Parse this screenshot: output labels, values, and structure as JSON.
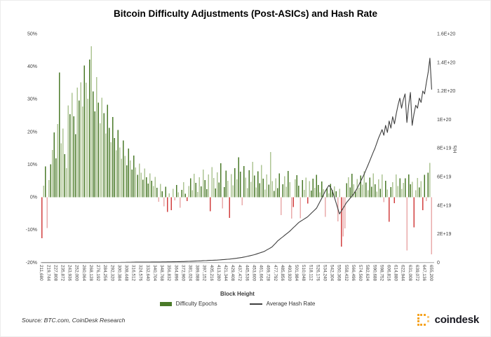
{
  "title": "Bitcoin Difficulty Adjustments (Post-ASICs) and Hash Rate",
  "source": "Source: BTC.com, CoinDesk Research",
  "logo": {
    "text": "coindesk",
    "mark_color": "#F6A21D",
    "mark_color_light": "#F9C878",
    "text_color": "#17171f"
  },
  "legend": {
    "difficulty": {
      "label": "Difficulty Epochs"
    },
    "hash": {
      "label": "Average Hash Rate"
    }
  },
  "chart_data": {
    "type": "bar+line",
    "title": "Bitcoin Difficulty Adjustments (Post-ASICs) and Hash Rate",
    "xlabel": "Block Height",
    "block_start": 211680,
    "block_step": 2016,
    "grid": "off",
    "legend_position": "bottom",
    "y_left": {
      "label": "",
      "unit": "%",
      "min": -20,
      "max": 50,
      "ticks": [
        "50%",
        "40%",
        "30%",
        "20%",
        "10%",
        "0%",
        "-10%",
        "-20%"
      ]
    },
    "y_right": {
      "label": "H/s",
      "min": 0,
      "max": 1.6e+20,
      "ticks": [
        "1.6E+20",
        "1.4E+20",
        "1.2E+20",
        "1E+20",
        "8E+19",
        "6E+19",
        "4E+19",
        "2E+19",
        "0"
      ]
    },
    "x_tick_labels": [
      "211,680",
      "219,744",
      "227,808",
      "235,872",
      "243,936",
      "252,000",
      "260,064",
      "268,128",
      "276,192",
      "284,256",
      "292,320",
      "300,384",
      "308,448",
      "316,512",
      "324,576",
      "332,640",
      "340,704",
      "348,768",
      "356,832",
      "364,896",
      "372,960",
      "381,024",
      "389,088",
      "397,152",
      "405,216",
      "413,280",
      "421,344",
      "429,408",
      "437,472",
      "445,536",
      "453,600",
      "461,664",
      "469,728",
      "477,792",
      "485,856",
      "493,920",
      "501,984",
      "510,048",
      "518,112",
      "526,176",
      "534,240",
      "542,304",
      "550,368",
      "558,432",
      "566,496",
      "574,560",
      "582,624",
      "590,688",
      "598,752",
      "606,816",
      "614,880",
      "622,944",
      "631,008",
      "639,072",
      "647,136",
      "655,200"
    ],
    "series": [
      {
        "name": "Difficulty Epochs",
        "type": "bar",
        "unit": "% adjustment",
        "values": [
          -12.6,
          3.5,
          9.4,
          -9.5,
          5.2,
          10.1,
          14.5,
          19.8,
          11.9,
          22.4,
          38.2,
          16.5,
          21.0,
          13.2,
          8.9,
          28.1,
          25.4,
          31.9,
          24.7,
          19.3,
          33.5,
          29.6,
          35.2,
          27.8,
          40.3,
          35.0,
          30.1,
          42.1,
          46.2,
          32.4,
          26.3,
          36.8,
          28.9,
          22.6,
          30.4,
          25.7,
          19.5,
          28.3,
          21.2,
          16.8,
          24.5,
          18.1,
          14.3,
          20.6,
          15.2,
          11.8,
          17.4,
          12.6,
          9.7,
          14.9,
          11.2,
          8.4,
          12.7,
          9.1,
          6.8,
          10.3,
          7.5,
          5.3,
          8.8,
          6.1,
          4.2,
          7.3,
          5.0,
          3.4,
          6.2,
          2.9,
          -1.4,
          4.1,
          1.8,
          -2.8,
          3.2,
          -4.5,
          1.2,
          -4.0,
          2.5,
          -1.0,
          3.7,
          1.5,
          -3.2,
          2.2,
          4.6,
          1.1,
          -1.2,
          3.4,
          5.8,
          2.1,
          7.2,
          4.4,
          1.6,
          6.1,
          3.3,
          8.5,
          5.2,
          2.4,
          7.0,
          -4.3,
          9.2,
          5.9,
          2.7,
          7.6,
          4.5,
          10.4,
          -3.5,
          3.1,
          8.1,
          5.0,
          -6.4,
          7.1,
          3.6,
          8.9,
          5.4,
          12.2,
          7.8,
          -2.5,
          9.5,
          6.0,
          2.8,
          8.2,
          4.7,
          10.8,
          6.6,
          3.0,
          7.9,
          4.3,
          9.8,
          5.7,
          2.3,
          6.9,
          3.8,
          13.8,
          4.9,
          1.9,
          5.8,
          2.8,
          7.3,
          -5.5,
          3.9,
          6.4,
          3.2,
          8.0,
          4.6,
          -6.6,
          -3.0,
          5.5,
          6.7,
          3.5,
          -6.5,
          5.2,
          2.2,
          6.0,
          -2.0,
          4.9,
          2.0,
          5.7,
          2.9,
          6.8,
          3.7,
          1.5,
          4.8,
          2.4,
          -6.0,
          2.8,
          1.2,
          4.1,
          2.2,
          3.3,
          1.8,
          -7.4,
          2.6,
          -15.1,
          -12.0,
          -9.6,
          4.3,
          6.1,
          3.0,
          7.2,
          4.0,
          1.7,
          5.6,
          2.9,
          6.6,
          3.8,
          7.9,
          4.5,
          2.1,
          6.0,
          3.2,
          7.3,
          4.0,
          1.7,
          5.4,
          2.6,
          6.9,
          -1.5,
          5.0,
          2.3,
          -7.5,
          3.1,
          4.6,
          -1.8,
          7.0,
          3.4,
          5.8,
          2.5,
          4.4,
          5.8,
          -16.3,
          6.9,
          3.9,
          4.7,
          -9.2,
          2.1,
          5.9,
          3.0,
          4.9,
          -4.0,
          6.8,
          -1.2,
          7.5,
          10.5,
          -17.5
        ]
      },
      {
        "name": "Average Hash Rate",
        "type": "line",
        "unit": "EH/s (1e18 H/s)",
        "values": [
          3e-05,
          4e-05,
          5e-05,
          6e-05,
          8e-05,
          0.0001,
          0.00012,
          0.00014,
          0.00016,
          0.00018,
          0.0002,
          0.00025,
          0.0003,
          0.0004,
          0.0005,
          0.0006,
          0.0007,
          0.0008,
          0.0009,
          0.00095,
          0.001,
          0.0013,
          0.0017,
          0.0022,
          0.0028,
          0.0035,
          0.0042,
          0.005,
          0.006,
          0.0075,
          0.009,
          0.011,
          0.013,
          0.016,
          0.019,
          0.023,
          0.027,
          0.032,
          0.038,
          0.047,
          0.06,
          0.07,
          0.082,
          0.095,
          0.11,
          0.125,
          0.14,
          0.16,
          0.18,
          0.2,
          0.22,
          0.24,
          0.255,
          0.27,
          0.285,
          0.3,
          0.31,
          0.32,
          0.33,
          0.34,
          0.35,
          0.36,
          0.37,
          0.38,
          0.39,
          0.4,
          0.41,
          0.415,
          0.42,
          0.43,
          0.45,
          0.47,
          0.49,
          0.51,
          0.54,
          0.56,
          0.59,
          0.62,
          0.64,
          0.67,
          0.7,
          0.74,
          0.79,
          0.84,
          0.89,
          0.95,
          1.0,
          1.05,
          1.1,
          1.15,
          1.2,
          1.26,
          1.32,
          1.38,
          1.45,
          1.5,
          1.56,
          1.62,
          1.68,
          1.74,
          1.8,
          1.9,
          2.0,
          2.1,
          2.2,
          2.3,
          2.4,
          2.55,
          2.7,
          2.85,
          3.0,
          3.2,
          3.4,
          3.6,
          3.8,
          4.0,
          4.3,
          4.6,
          4.9,
          5.2,
          5.5,
          5.9,
          6.3,
          6.7,
          7.1,
          7.5,
          8.1,
          8.8,
          9.5,
          10.2,
          11.0,
          12.3,
          13.6,
          15.0,
          16.0,
          17.0,
          18.0,
          19.0,
          20.0,
          21.0,
          22.0,
          23.2,
          24.4,
          25.6,
          26.8,
          28.0,
          28.8,
          29.6,
          30.4,
          31.2,
          32.0,
          33.2,
          34.4,
          35.6,
          36.8,
          38.0,
          40.3,
          42.6,
          45.0,
          47.5,
          50.0,
          52.0,
          54.0,
          52.5,
          50.0,
          46.0,
          42.0,
          38.0,
          34.0,
          36.0,
          38.0,
          40.0,
          42.0,
          43.5,
          45.0,
          46.5,
          48.0,
          50.0,
          52.0,
          54.5,
          57.0,
          59.5,
          62.0,
          65.0,
          68.0,
          71.0,
          74.0,
          77.0,
          80.0,
          83.5,
          87.0,
          90.0,
          93.0,
          89.0,
          96.0,
          91.0,
          99.0,
          94.0,
          102.0,
          97.0,
          104.0,
          110.0,
          115.0,
          108.0,
          114.0,
          118.0,
          98.0,
          110.0,
          119.0,
          96.0,
          104.0,
          110.0,
          108.0,
          115.0,
          112.0,
          120.0,
          118.0,
          126.0,
          133.0,
          143.0,
          121.0
        ]
      }
    ],
    "colors": {
      "bar_pos_dark": "#4a7a28",
      "bar_pos_light": "#aec594",
      "bar_neg_dark": "#d23f3f",
      "bar_neg_light": "#eaabab",
      "line": "#3f3f3f",
      "axis": "#a6a6a6",
      "tick_text": "#404040"
    }
  }
}
